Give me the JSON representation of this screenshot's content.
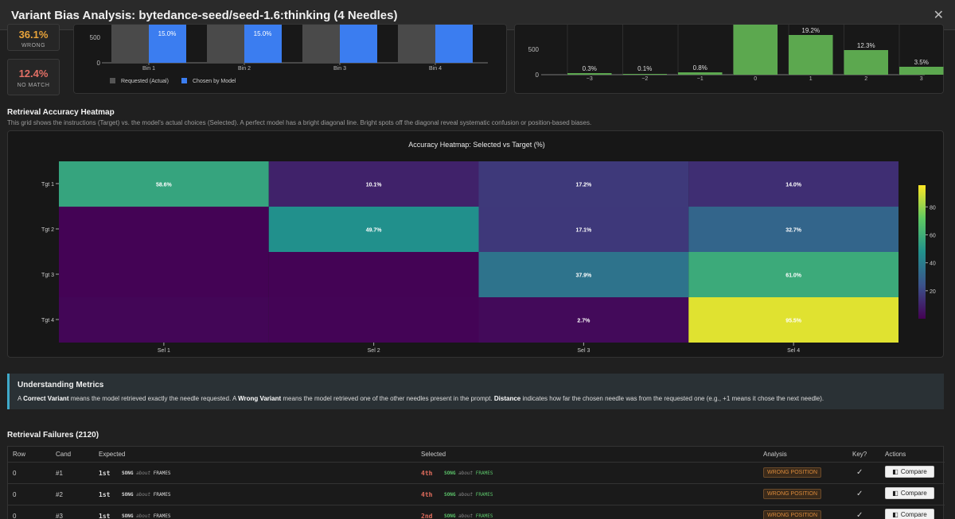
{
  "modal": {
    "title": "Variant Bias Analysis: bytedance-seed/seed-1.6:thinking (4 Needles)",
    "close": "✕"
  },
  "stats": [
    {
      "value": "36.1%",
      "label": "WRONG",
      "color": "#e8a33a"
    },
    {
      "value": "12.4%",
      "label": "NO MATCH",
      "color": "#e37066"
    }
  ],
  "bin_chart": {
    "y_ticks": [
      "500",
      "0"
    ],
    "bins": [
      "Bin 1",
      "Bin 2",
      "Bin 3",
      "Bin 4"
    ],
    "chosen_labels": [
      "15.0%",
      "15.0%",
      "",
      ""
    ],
    "legend": {
      "requested": "Requested (Actual)",
      "chosen": "Chosen by Model"
    }
  },
  "distance_chart": {
    "y_ticks": [
      "500",
      "0"
    ],
    "categories": [
      "−3",
      "−2",
      "−1",
      "0",
      "1",
      "2",
      "3"
    ],
    "labels": [
      "0.3%",
      "0.1%",
      "0.8%",
      "",
      "19.2%",
      "12.3%",
      "3.5%"
    ]
  },
  "heatmap_section": {
    "title": "Retrieval Accuracy Heatmap",
    "desc": "This grid shows the instructions (Target) vs. the model's actual choices (Selected). A perfect model has a bright diagonal line. Bright spots off the diagonal reveal systematic confusion or position-based biases."
  },
  "chart_data": {
    "type": "heatmap",
    "title": "Accuracy Heatmap: Selected vs Target (%)",
    "rows": [
      "Tgt 1",
      "Tgt 2",
      "Tgt 3",
      "Tgt 4"
    ],
    "cols": [
      "Sel 1",
      "Sel 2",
      "Sel 3",
      "Sel 4"
    ],
    "values": [
      [
        58.6,
        10.1,
        17.2,
        14.0
      ],
      [
        0.5,
        49.7,
        17.1,
        32.7
      ],
      [
        0.5,
        0.5,
        37.9,
        61.0
      ],
      [
        1.5,
        0.8,
        2.7,
        95.5
      ]
    ],
    "labels": [
      [
        "58.6%",
        "10.1%",
        "17.2%",
        "14.0%"
      ],
      [
        "",
        "49.7%",
        "17.1%",
        "32.7%"
      ],
      [
        "",
        "",
        "37.9%",
        "61.0%"
      ],
      [
        "",
        "",
        "2.7%",
        "95.5%"
      ]
    ],
    "colorbar_ticks": [
      "80",
      "60",
      "40",
      "20"
    ],
    "colorbar_values": [
      80,
      60,
      40,
      20
    ],
    "zmin": 0,
    "zmax": 100
  },
  "info": {
    "title": "Understanding Metrics",
    "p1": "A ",
    "b1": "Correct Variant",
    "p2": " means the model retrieved exactly the needle requested. A ",
    "b2": "Wrong Variant",
    "p3": " means the model retrieved one of the other needles present in the prompt. ",
    "b3": "Distance",
    "p4": " indicates how far the chosen needle was from the requested one (e.g., +1 means it chose the next needle)."
  },
  "failures": {
    "title": "Retrieval Failures (2120)",
    "headers": {
      "row": "Row",
      "cand": "Cand",
      "expected": "Expected",
      "selected": "Selected",
      "analysis": "Analysis",
      "key": "Key?",
      "actions": "Actions"
    },
    "rows": [
      {
        "row": "0",
        "cand": "#1",
        "exp_ord": "1st",
        "exp_song": "SONG",
        "exp_about": "about",
        "exp_frames": "FRAMES",
        "sel_ord": "4th",
        "sel_song": "SONG",
        "sel_about": "about",
        "sel_frames": "FRAMES",
        "analysis": "WRONG POSITION",
        "key": "✓",
        "action": "Compare"
      },
      {
        "row": "0",
        "cand": "#2",
        "exp_ord": "1st",
        "exp_song": "SONG",
        "exp_about": "about",
        "exp_frames": "FRAMES",
        "sel_ord": "4th",
        "sel_song": "SONG",
        "sel_about": "about",
        "sel_frames": "FRAMES",
        "analysis": "WRONG POSITION",
        "key": "✓",
        "action": "Compare"
      },
      {
        "row": "0",
        "cand": "#3",
        "exp_ord": "1st",
        "exp_song": "SONG",
        "exp_about": "about",
        "exp_frames": "FRAMES",
        "sel_ord": "2nd",
        "sel_song": "SONG",
        "sel_about": "about",
        "sel_frames": "FRAMES",
        "analysis": "WRONG POSITION",
        "key": "✓",
        "action": "Compare"
      }
    ]
  }
}
